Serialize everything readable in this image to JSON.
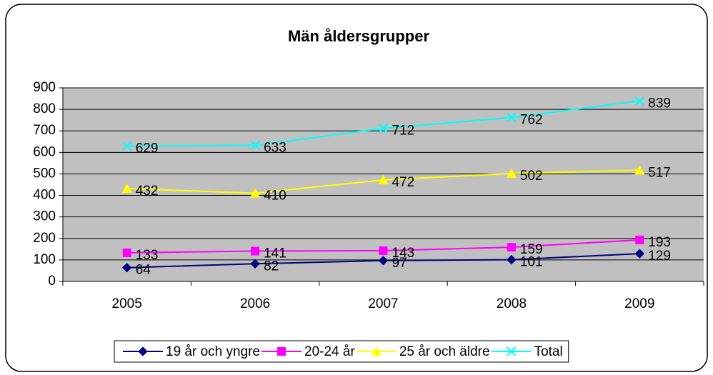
{
  "chart_data": {
    "type": "line",
    "title": "Män åldersgrupper",
    "categories": [
      "2005",
      "2006",
      "2007",
      "2008",
      "2009"
    ],
    "series": [
      {
        "name": "19 år och yngre",
        "color": "#000080",
        "values": [
          64,
          82,
          97,
          101,
          129
        ]
      },
      {
        "name": "20-24 år",
        "color": "#ff00ff",
        "values": [
          133,
          141,
          143,
          159,
          193
        ]
      },
      {
        "name": "25 år och äldre",
        "color": "#ffff00",
        "values": [
          432,
          410,
          472,
          502,
          517
        ]
      },
      {
        "name": "Total",
        "color": "#00ffff",
        "values": [
          629,
          633,
          712,
          762,
          839
        ]
      }
    ],
    "ylim": [
      0,
      900
    ],
    "yticks": [
      0,
      100,
      200,
      300,
      400,
      500,
      600,
      700,
      800,
      900
    ],
    "grid": true,
    "legend": "bottom"
  }
}
